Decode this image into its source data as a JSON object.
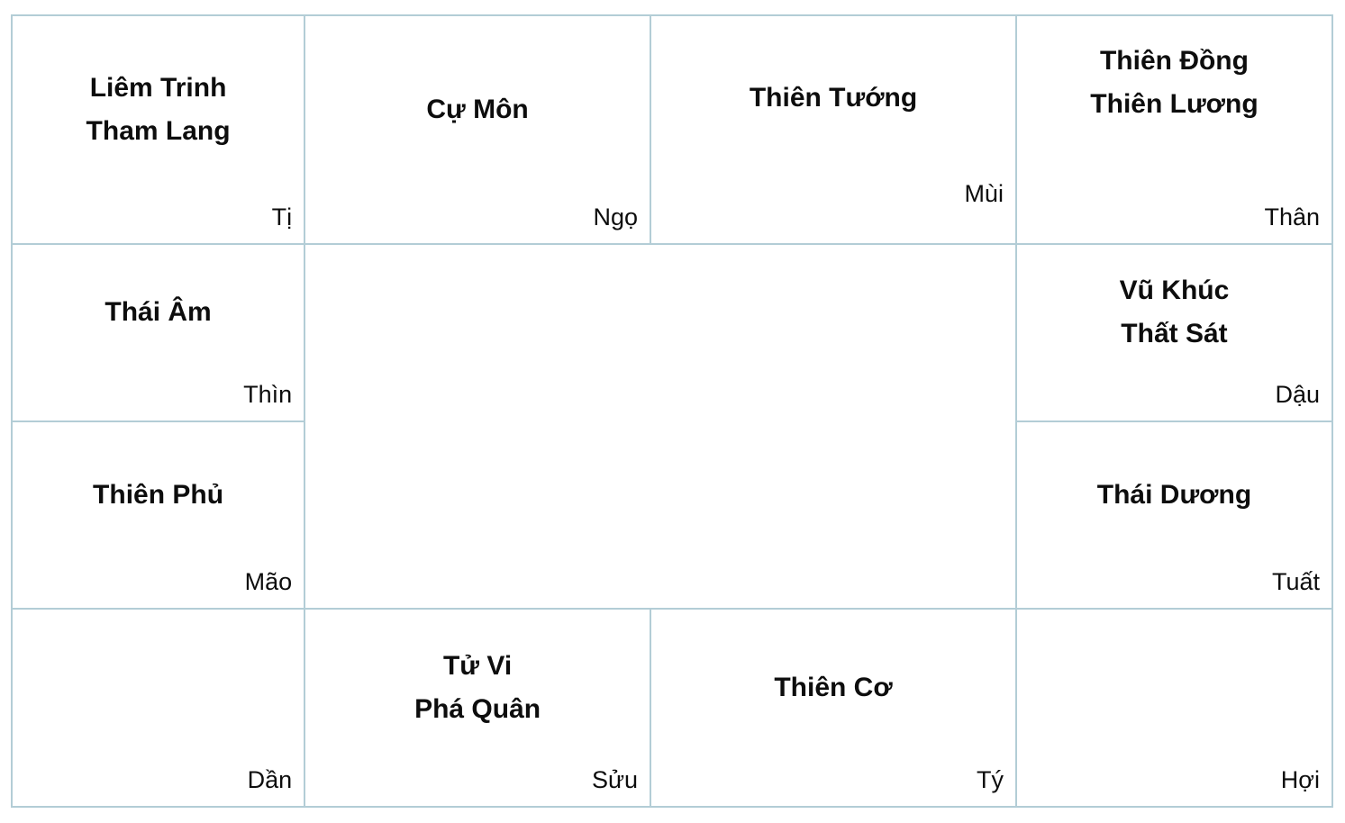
{
  "palaces": {
    "ti": {
      "stars": [
        "Liêm Trinh",
        "Tham Lang"
      ],
      "branch": "Tị"
    },
    "ngo": {
      "stars": [
        "Cự Môn"
      ],
      "branch": "Ngọ"
    },
    "mui": {
      "stars": [
        "Thiên Tướng"
      ],
      "branch": "Mùi"
    },
    "than": {
      "stars": [
        "Thiên Đồng",
        "Thiên Lương"
      ],
      "branch": "Thân"
    },
    "thin": {
      "stars": [
        "Thái Âm"
      ],
      "branch": "Thìn"
    },
    "dau": {
      "stars": [
        "Vũ Khúc",
        "Thất Sát"
      ],
      "branch": "Dậu"
    },
    "mao": {
      "stars": [
        "Thiên Phủ"
      ],
      "branch": "Mão"
    },
    "tuat": {
      "stars": [
        "Thái Dương"
      ],
      "branch": "Tuất"
    },
    "dan": {
      "stars": [],
      "branch": "Dần"
    },
    "suu": {
      "stars": [
        "Tử Vi",
        "Phá Quân"
      ],
      "branch": "Sửu"
    },
    "ty": {
      "stars": [
        "Thiên Cơ"
      ],
      "branch": "Tý"
    },
    "hoi": {
      "stars": [],
      "branch": "Hợi"
    }
  },
  "colors": {
    "border": "#b3cdd6",
    "text": "#0d0d0d",
    "background": "#ffffff"
  }
}
